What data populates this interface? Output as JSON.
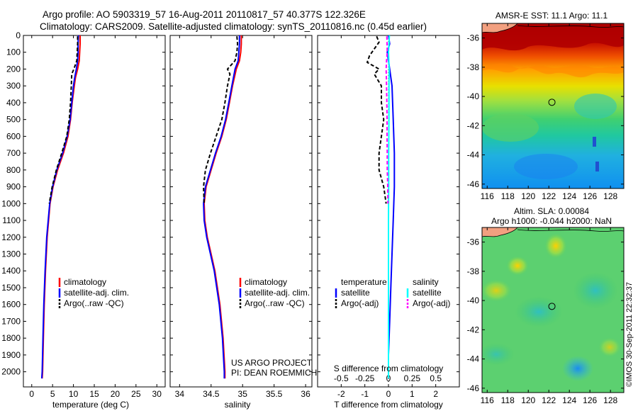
{
  "header": {
    "title_line1": "Argo profile: AO 5903319_57 16-Aug-2011 20110817_57 40.377S 122.326E",
    "title_line2": "Climatology: CARS2009. Satellite-adjusted climatology: synTS_20110816.nc (0.45d earlier)"
  },
  "credits": {
    "project_line1": "US ARGO PROJECT",
    "project_line2": "PI: DEAN ROEMMICH",
    "timestamp": "©IMOS 30-Sep-2011 22:32:37"
  },
  "colors": {
    "climatology": "#ff0000",
    "satellite": "#0000ff",
    "argo": "#000000",
    "sal_satellite": "#00ffff",
    "sal_argo": "#ff00ff"
  },
  "chart_data": [
    {
      "type": "line",
      "id": "temperature",
      "xlabel": "temperature (deg C)",
      "ylabel": "",
      "xlim": [
        -2,
        32
      ],
      "ylim": [
        2090,
        0
      ],
      "xticks": [
        "0",
        "5",
        "10",
        "15",
        "20",
        "25",
        "30"
      ],
      "xtick_values": [
        0,
        5,
        10,
        15,
        20,
        25,
        30
      ],
      "yticks": [
        "0",
        "100",
        "200",
        "300",
        "400",
        "500",
        "600",
        "700",
        "800",
        "900",
        "1000",
        "1100",
        "1200",
        "1300",
        "1400",
        "1500",
        "1600",
        "1700",
        "1800",
        "1900",
        "2000"
      ],
      "ytick_values": [
        0,
        100,
        200,
        300,
        400,
        500,
        600,
        700,
        800,
        900,
        1000,
        1100,
        1200,
        1300,
        1400,
        1500,
        1600,
        1700,
        1800,
        1900,
        2000
      ],
      "legend": [
        "climatology",
        "satellite-adj. clim.",
        "Argo(..raw -QC)"
      ],
      "series": [
        {
          "name": "climatology",
          "color": "#ff0000",
          "dash": "",
          "depth": [
            0,
            50,
            100,
            150,
            200,
            250,
            300,
            400,
            500,
            600,
            700,
            800,
            900,
            1000,
            1200,
            1400,
            1600,
            1800,
            2000,
            2040
          ],
          "values": [
            11.6,
            11.6,
            11.5,
            11.4,
            11.0,
            10.5,
            10.2,
            9.7,
            9.3,
            8.7,
            7.6,
            6.2,
            5.1,
            4.4,
            3.7,
            3.3,
            3.0,
            2.8,
            2.6,
            2.5
          ]
        },
        {
          "name": "satellite-adj. clim.",
          "color": "#0000ff",
          "dash": "",
          "depth": [
            0,
            50,
            100,
            150,
            200,
            250,
            300,
            400,
            500,
            600,
            700,
            800,
            900,
            1000,
            1200,
            1400,
            1600,
            1800,
            2000,
            2040
          ],
          "values": [
            11.2,
            11.1,
            11.1,
            11.0,
            10.7,
            10.3,
            10.0,
            9.6,
            9.2,
            8.5,
            7.4,
            6.0,
            5.0,
            4.3,
            3.6,
            3.2,
            2.9,
            2.7,
            2.5,
            2.4
          ]
        },
        {
          "name": "Argo(..raw -QC)",
          "color": "#000000",
          "dash": "5,3",
          "depth": [
            5,
            50,
            100,
            150,
            200,
            230,
            300,
            400,
            500,
            600,
            700,
            800,
            900,
            1000
          ],
          "values": [
            11.0,
            11.0,
            10.9,
            10.8,
            10.1,
            9.6,
            9.5,
            9.3,
            9.0,
            8.4,
            7.2,
            5.9,
            4.9,
            4.2
          ]
        }
      ]
    },
    {
      "type": "line",
      "id": "salinity",
      "xlabel": "salinity",
      "ylabel": "",
      "xlim": [
        33.85,
        36.1
      ],
      "ylim": [
        2090,
        0
      ],
      "xticks": [
        "34",
        "34.5",
        "35",
        "35.5",
        "36"
      ],
      "xtick_values": [
        34,
        34.5,
        35,
        35.5,
        36
      ],
      "legend": [
        "climatology",
        "satellite-adj. clim.",
        "Argo(..raw -QC)"
      ],
      "series": [
        {
          "name": "climatology",
          "color": "#ff0000",
          "dash": "",
          "depth": [
            0,
            50,
            100,
            150,
            200,
            300,
            400,
            500,
            600,
            700,
            800,
            900,
            1000,
            1100,
            1200,
            1300,
            1400,
            1600,
            1800,
            2000,
            2040
          ],
          "values": [
            34.98,
            34.98,
            34.97,
            34.95,
            34.9,
            34.84,
            34.79,
            34.74,
            34.67,
            34.58,
            34.5,
            34.42,
            34.39,
            34.4,
            34.44,
            34.5,
            34.56,
            34.64,
            34.69,
            34.72,
            34.72
          ]
        },
        {
          "name": "satellite-adj. clim.",
          "color": "#0000ff",
          "dash": "",
          "depth": [
            0,
            50,
            100,
            150,
            200,
            300,
            400,
            500,
            600,
            700,
            800,
            900,
            1000,
            1100,
            1200,
            1300,
            1400,
            1600,
            1800,
            2000,
            2040
          ],
          "values": [
            34.95,
            34.95,
            34.94,
            34.93,
            34.88,
            34.83,
            34.78,
            34.73,
            34.66,
            34.57,
            34.49,
            34.41,
            34.38,
            34.39,
            34.43,
            34.49,
            34.55,
            34.63,
            34.68,
            34.71,
            34.71
          ]
        },
        {
          "name": "Argo(..raw -QC)",
          "color": "#000000",
          "dash": "5,3",
          "depth": [
            5,
            50,
            100,
            150,
            200,
            230,
            300,
            400,
            500,
            600,
            700,
            800,
            900,
            1000
          ],
          "values": [
            34.91,
            34.92,
            34.91,
            34.88,
            34.76,
            34.8,
            34.76,
            34.72,
            34.67,
            34.58,
            34.49,
            34.41,
            34.38,
            34.39
          ]
        }
      ]
    },
    {
      "type": "line",
      "id": "difference",
      "xlabel": "T difference from climatology",
      "xlabel_top": "S difference from climatology",
      "xlim": [
        -3,
        3
      ],
      "ylim": [
        2090,
        0
      ],
      "xticks": [
        "-2",
        "-1",
        "0",
        "1",
        "2"
      ],
      "xtick_values": [
        -2,
        -1,
        0,
        1,
        2
      ],
      "xticks_s": [
        "-0.5",
        "-0.25",
        "0",
        "0.25",
        "0.5"
      ],
      "legend": [
        "temperature",
        "satellite",
        "Argo(-adj)",
        "salinity",
        "satellite",
        "Argo(-adj)"
      ],
      "series": [
        {
          "name": "temperature satellite",
          "color": "#0000ff",
          "dash": "",
          "depth": [
            0,
            50,
            100,
            200,
            300,
            500,
            700,
            900,
            1100,
            1300,
            1500,
            1700,
            1900,
            2040
          ],
          "values": [
            0.0,
            0.05,
            -0.05,
            0.05,
            0.15,
            0.2,
            0.25,
            0.25,
            0.2,
            0.15,
            0.1,
            0.05,
            0.0,
            0.0
          ]
        },
        {
          "name": "temperature Argo(-adj)",
          "color": "#000000",
          "dash": "5,3",
          "depth": [
            5,
            40,
            80,
            120,
            160,
            200,
            230,
            300,
            400,
            500,
            600,
            700,
            800,
            900,
            1000
          ],
          "values": [
            -0.5,
            -0.4,
            -0.6,
            -0.8,
            -0.9,
            -0.4,
            -0.6,
            -0.3,
            -0.3,
            -0.2,
            -0.3,
            -0.4,
            -0.4,
            -0.2,
            -0.1
          ]
        },
        {
          "name": "salinity satellite",
          "color": "#00ffff",
          "dash": "",
          "depth": [
            0,
            50,
            100,
            200,
            300,
            500,
            700,
            900,
            1100,
            1300,
            1500,
            1700,
            1900,
            2040
          ],
          "values": [
            0.04,
            0.02,
            0.0,
            0.03,
            0.02,
            0.02,
            0.01,
            0.01,
            0.0,
            0.0,
            0.0,
            0.0,
            0.0,
            0.0
          ]
        },
        {
          "name": "salinity Argo(-adj)",
          "color": "#ff00ff",
          "dash": "5,3",
          "depth": [
            5,
            50,
            100,
            150,
            200,
            300,
            400,
            500,
            600,
            700,
            800,
            900,
            1000
          ],
          "values": [
            -0.07,
            -0.06,
            -0.05,
            -0.08,
            -0.1,
            -0.08,
            -0.07,
            -0.06,
            -0.06,
            -0.05,
            -0.05,
            -0.03,
            -0.02
          ]
        }
      ]
    },
    {
      "type": "heatmap",
      "id": "sst_map",
      "title": "AMSR-E SST: 11.1 Argo: 11.1",
      "xlim": [
        115.5,
        129.3
      ],
      "ylim": [
        -46.3,
        -35
      ],
      "xticks": [
        "116",
        "118",
        "120",
        "122",
        "124",
        "126",
        "128"
      ],
      "xtick_values": [
        116,
        118,
        120,
        122,
        124,
        126,
        128
      ],
      "yticks": [
        "-36",
        "-38",
        "-40",
        "-42",
        "-44",
        "-46"
      ],
      "ytick_values": [
        -36,
        -38,
        -40,
        -42,
        -44,
        -46
      ],
      "marker": {
        "lon": 122.3,
        "lat": -40.4
      }
    },
    {
      "type": "heatmap",
      "id": "sla_map",
      "title_line1": "Altim. SLA: 0.00084",
      "title_line2": "Argo h1000: -0.044 h2000: NaN",
      "xlim": [
        115.5,
        129.3
      ],
      "ylim": [
        -46.3,
        -35
      ],
      "xticks": [
        "116",
        "118",
        "120",
        "122",
        "124",
        "126",
        "128"
      ],
      "xtick_values": [
        116,
        118,
        120,
        122,
        124,
        126,
        128
      ],
      "yticks": [
        "-36",
        "-38",
        "-40",
        "-42",
        "-44",
        "-46"
      ],
      "ytick_values": [
        -36,
        -38,
        -40,
        -42,
        -44,
        -46
      ],
      "marker": {
        "lon": 122.3,
        "lat": -40.4
      }
    }
  ]
}
